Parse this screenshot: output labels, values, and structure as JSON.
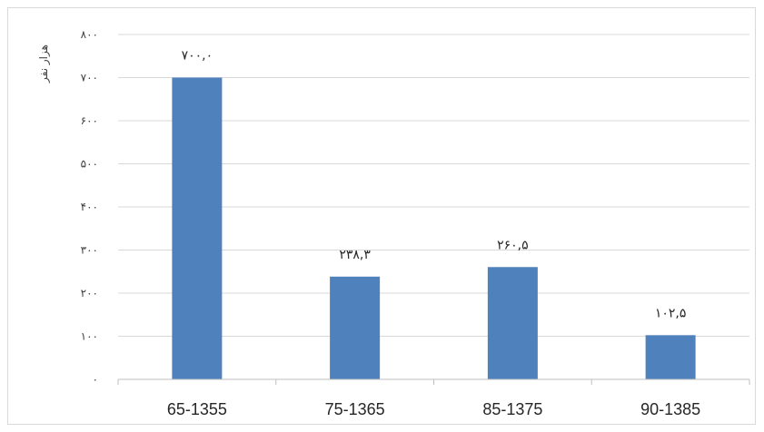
{
  "chart_data": {
    "type": "bar",
    "categories": [
      "65-1355",
      "75-1365",
      "85-1375",
      "90-1385"
    ],
    "values": [
      700.0,
      238.3,
      260.5,
      102.5
    ],
    "value_labels": [
      "٧٠٠,٠",
      "٢٣٨,٣",
      "٢۶٠,۵",
      "١٠٢,۵"
    ],
    "ylabel": "هزار نفر",
    "xlabel": "",
    "ylim": [
      0,
      800
    ],
    "yticks": [
      0,
      100,
      200,
      300,
      400,
      500,
      600,
      700,
      800
    ],
    "ytick_labels": [
      "٠",
      "١٠٠",
      "٢٠٠",
      "٣٠٠",
      "۴٠٠",
      "۵٠٠",
      "۶٠٠",
      "٧٠٠",
      "٨٠٠"
    ],
    "grid": true,
    "legend": "none",
    "colors": {
      "bar": "#4f81bd",
      "grid": "#d9d9d9",
      "axis": "#bfbfbf"
    }
  }
}
